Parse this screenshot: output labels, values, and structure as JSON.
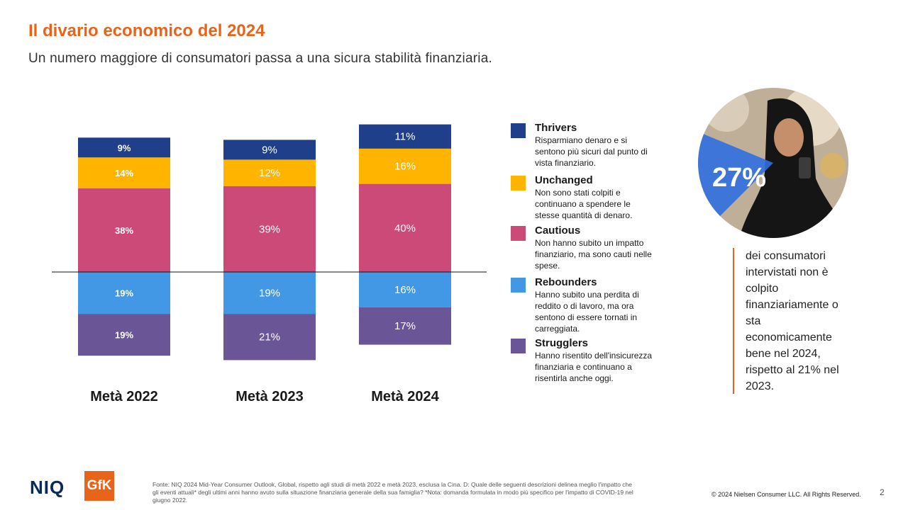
{
  "header": {
    "title": "Il divario economico del 2024",
    "subtitle": "Un numero maggiore di consumatori passa a una sicura stabilità finanziaria."
  },
  "chart_data": {
    "type": "bar",
    "stacked": true,
    "categories": [
      "Metà 2022",
      "Metà 2023",
      "Metà 2024"
    ],
    "series": [
      {
        "name": "Strugglers",
        "values": [
          19,
          21,
          17
        ],
        "color": "#6a5596"
      },
      {
        "name": "Rebounders",
        "values": [
          19,
          19,
          16
        ],
        "color": "#4398e6"
      },
      {
        "name": "Cautious",
        "values": [
          38,
          39,
          40
        ],
        "color": "#cc4a78"
      },
      {
        "name": "Unchanged",
        "values": [
          14,
          12,
          16
        ],
        "color": "#ffb400"
      },
      {
        "name": "Thrivers",
        "values": [
          9,
          9,
          11
        ],
        "color": "#1f3f8a"
      }
    ],
    "labels": [
      [
        "19%",
        "19%",
        "38%",
        "14%",
        "9%"
      ],
      [
        "21%",
        "19%",
        "39%",
        "12%",
        "9%"
      ],
      [
        "17%",
        "16%",
        "40%",
        "16%",
        "11%"
      ]
    ],
    "baseline_line": true
  },
  "legend": {
    "items": [
      {
        "name": "Thrivers",
        "desc": "Risparmiano denaro e si sentono più sicuri dal punto di vista finanziario.",
        "color": "#1f3f8a"
      },
      {
        "name": "Unchanged",
        "desc": "Non sono stati colpiti e continuano a spendere le stesse quantità di denaro.",
        "color": "#ffb400"
      },
      {
        "name": "Cautious",
        "desc": "Non hanno subito un impatto finanziario, ma sono cauti nelle spese.",
        "color": "#cc4a78"
      },
      {
        "name": "Rebounders",
        "desc": "Hanno subito una perdita di reddito o di lavoro, ma ora sentono di essere tornati in carreggiata.",
        "color": "#4398e6"
      },
      {
        "name": "Strugglers",
        "desc": "Hanno risentito dell'insicurezza finanziaria e continuano a risentirla anche oggi.",
        "color": "#6a5596"
      }
    ]
  },
  "callout": {
    "percent": "27%",
    "text": "dei consumatori intervistati non è colpito finanziariamente o sta economicamente bene nel 2024, rispetto al 21% nel 2023."
  },
  "footer": {
    "niq": "NIQ",
    "gfk": "GfK",
    "source": "Fonte: NIQ 2024 Mid-Year Consumer Outlook, Global, rispetto agli studi di metà 2022 e metà 2023, esclusa la Cina. D: Quale delle seguenti descrizioni delinea meglio l'impatto che gli eventi attuali* degli ultimi anni hanno avuto sulla situazione finanziaria generale della sua famiglia? *Nota: domanda formulata in modo più specifico per l'impatto di COVID-19 nel giugno 2022.",
    "copyright": "© 2024 Nielsen Consumer LLC. All Rights Reserved.",
    "page": "2"
  }
}
